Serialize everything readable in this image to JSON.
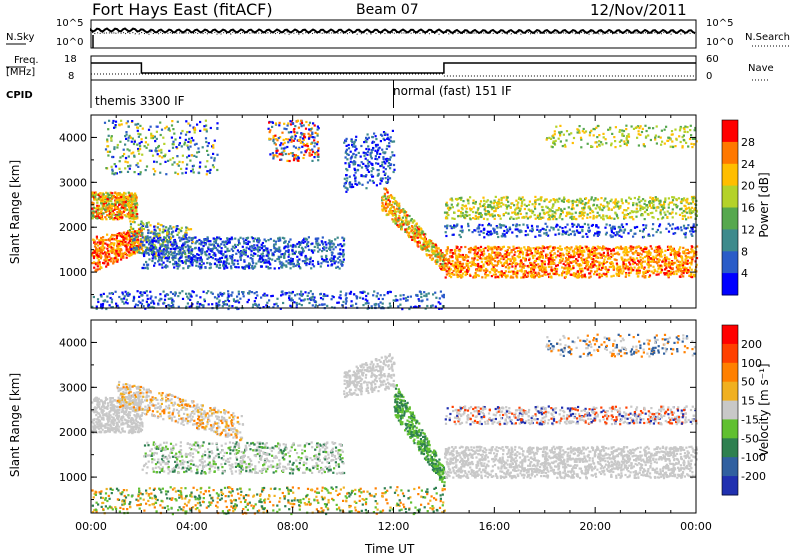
{
  "header": {
    "title": "Fort Hays East (fitACF)",
    "beam": "Beam 07",
    "date": "12/Nov/2011"
  },
  "top_panels": {
    "nsky_label": "N.Sky",
    "nsearch_label": "N.Search",
    "noise_ticks": [
      "10^5",
      "10^0"
    ],
    "freq_label": "Freq.",
    "freq_unit": "[MHz]",
    "freq_ticks": [
      "18",
      "8"
    ],
    "nave_label": "Nave",
    "nave_ticks": [
      "60",
      "0"
    ],
    "cpid_label": "CPID",
    "cpid_segments": [
      {
        "label": "themis 3300 IF",
        "start_hour": 0
      },
      {
        "label": "normal (fast) 151 IF",
        "start_hour": 12
      }
    ]
  },
  "chart_data": [
    {
      "type": "heatmap",
      "ylabel": "Slant Range [km]",
      "xlabel": "",
      "ylim": [
        200,
        4500
      ],
      "yticks": [
        "1000",
        "2000",
        "3000",
        "4000"
      ],
      "colorbar_label": "Power [dB]",
      "colorbar_ticks": [
        "28",
        "24",
        "20",
        "16",
        "12",
        "8",
        "4"
      ],
      "colorbar_colors": [
        "#0000ff",
        "#2a5cc8",
        "#3e8a8c",
        "#56a84e",
        "#b4d22a",
        "#ffbe00",
        "#ff7800",
        "#ff0000"
      ]
    },
    {
      "type": "heatmap",
      "ylabel": "Slant Range [km]",
      "xlabel": "Time UT",
      "ylim": [
        200,
        4500
      ],
      "yticks": [
        "1000",
        "2000",
        "3000",
        "4000"
      ],
      "xticks": [
        "00:00",
        "04:00",
        "08:00",
        "12:00",
        "16:00",
        "20:00",
        "00:00"
      ],
      "colorbar_label": "Velocity [m s⁻¹]",
      "colorbar_ticks": [
        "200",
        "100",
        "50",
        "15",
        "-15",
        "-50",
        "-100",
        "-200"
      ],
      "colorbar_colors": [
        "#2030b0",
        "#3060a0",
        "#2e8050",
        "#60c030",
        "#c8c8c8",
        "#f0b020",
        "#ff8000",
        "#ff4000",
        "#ff0000"
      ]
    }
  ]
}
